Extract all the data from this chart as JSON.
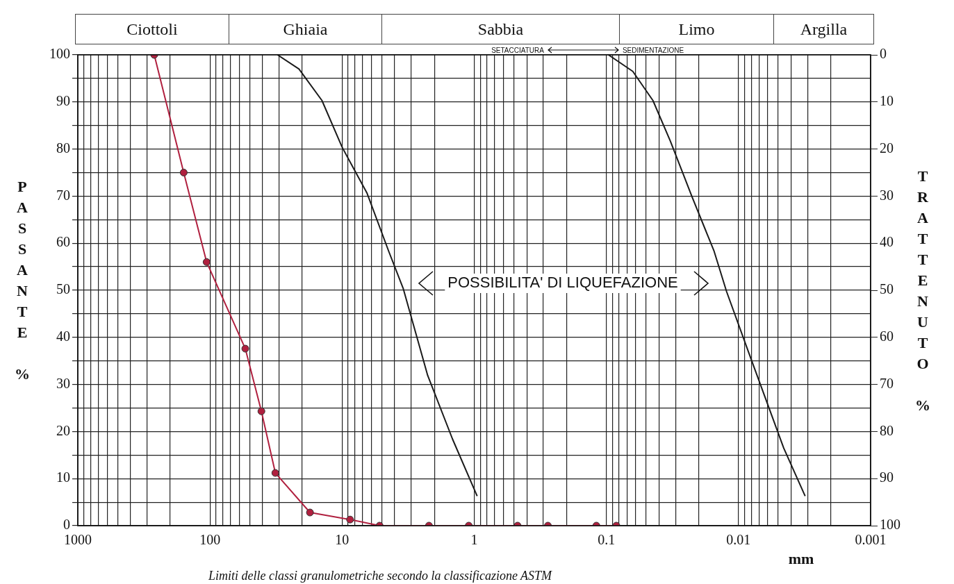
{
  "chart_data": {
    "type": "line",
    "xlabel": "mm",
    "ylabel": "PASSANTE %",
    "y2label": "TRATTENUTO %",
    "xlim": [
      1000,
      0.001
    ],
    "xticks": [
      1000,
      {
        "value": 900,
        "label": null
      },
      {
        "value": 800,
        "label": null
      },
      {
        "value": 700,
        "label": null
      },
      {
        "value": 600,
        "label": null
      },
      {
        "value": 500,
        "label": null
      },
      {
        "value": 400,
        "label": null
      },
      {
        "value": 300,
        "label": null
      },
      {
        "value": 200,
        "label": null
      },
      100,
      {
        "value": 90,
        "label": null
      },
      {
        "value": 80,
        "label": null
      },
      {
        "value": 70,
        "label": null
      },
      {
        "value": 60,
        "label": null
      },
      {
        "value": 50,
        "label": null
      },
      {
        "value": 40,
        "label": null
      },
      {
        "value": 30,
        "label": null
      },
      {
        "value": 20,
        "label": null
      },
      10,
      {
        "value": 9,
        "label": null
      },
      {
        "value": 8,
        "label": null
      },
      {
        "value": 7,
        "label": null
      },
      {
        "value": 6,
        "label": null
      },
      {
        "value": 5,
        "label": null
      },
      {
        "value": 4,
        "label": null
      },
      {
        "value": 3,
        "label": null
      },
      {
        "value": 2,
        "label": null
      },
      1,
      {
        "value": 0.9,
        "label": null
      },
      {
        "value": 0.8,
        "label": null
      },
      {
        "value": 0.7,
        "label": null
      },
      {
        "value": 0.6,
        "label": null
      },
      {
        "value": 0.5,
        "label": null
      },
      {
        "value": 0.4,
        "label": null
      },
      {
        "value": 0.3,
        "label": null
      },
      {
        "value": 0.2,
        "label": null
      },
      0.1,
      {
        "value": 0.09,
        "label": null
      },
      {
        "value": 0.08,
        "label": null
      },
      {
        "value": 0.07,
        "label": null
      },
      {
        "value": 0.06,
        "label": null
      },
      {
        "value": 0.05,
        "label": null
      },
      {
        "value": 0.04,
        "label": null
      },
      {
        "value": 0.03,
        "label": null
      },
      {
        "value": 0.02,
        "label": null
      },
      0.01,
      {
        "value": 0.009,
        "label": null
      },
      {
        "value": 0.008,
        "label": null
      },
      {
        "value": 0.007,
        "label": null
      },
      {
        "value": 0.006,
        "label": null
      },
      {
        "value": 0.005,
        "label": null
      },
      {
        "value": 0.004,
        "label": null
      },
      {
        "value": 0.003,
        "label": null
      },
      {
        "value": 0.002,
        "label": null
      },
      0.001
    ],
    "log": "x",
    "ylim": [
      0,
      100
    ],
    "yticks": [
      0,
      {
        "value": 5,
        "label": null
      },
      10,
      {
        "value": 15,
        "label": null
      },
      20,
      {
        "value": 25,
        "label": null
      },
      30,
      {
        "value": 35,
        "label": null
      },
      40,
      {
        "value": 45,
        "label": null
      },
      50,
      {
        "value": 55,
        "label": null
      },
      60,
      {
        "value": 65,
        "label": null
      },
      70,
      {
        "value": 75,
        "label": null
      },
      80,
      {
        "value": 85,
        "label": null
      },
      90,
      {
        "value": 95,
        "label": null
      },
      100
    ],
    "y2lim": [
      100,
      0
    ],
    "y2ticks": [
      0,
      10,
      20,
      30,
      40,
      50,
      60,
      70,
      80,
      90,
      100
    ],
    "grid": true,
    "series": [
      {
        "color": "#b0203f",
        "marker": "circle",
        "x": [
          264,
          158,
          106,
          54,
          40.8,
          32,
          17.5,
          8.7,
          5.2,
          2.2,
          1.1,
          0.47,
          0.277,
          0.119,
          0.084
        ],
        "values": [
          100,
          75,
          56,
          37.6,
          24.3,
          11.2,
          2.8,
          1.3,
          0,
          0,
          0,
          0,
          0,
          0,
          0
        ]
      },
      {
        "color": "#1a1a1a",
        "marker": "none",
        "x": [
          30.8,
          21.2,
          14.2,
          10,
          6.47,
          4.44,
          3.44,
          2.25,
          1.46,
          0.95
        ],
        "values": [
          100,
          97,
          90.3,
          80.4,
          70.6,
          58.3,
          50.3,
          31.9,
          18.4,
          6.3
        ]
      },
      {
        "color": "#1a1a1a",
        "marker": "none",
        "x": [
          0.0964,
          0.0631,
          0.0444,
          0.0328,
          0.0225,
          0.0153,
          0.0123,
          0.00794,
          0.00455,
          0.00313
        ],
        "values": [
          100,
          96.5,
          90.3,
          81.7,
          69.9,
          58.3,
          49.7,
          35,
          16.5,
          6.3
        ]
      }
    ],
    "annotations": [
      "POSSIBILITA' DI LIQUEFAZIONE",
      "SETACCIATURA",
      "SEDIMENTAZIONE",
      "Limiti delle classi granulometriche secondo la classificazione ASTM",
      "Ciottoli",
      "Ghiaia",
      "Sabbia",
      "Limo",
      "Argilla"
    ]
  }
}
